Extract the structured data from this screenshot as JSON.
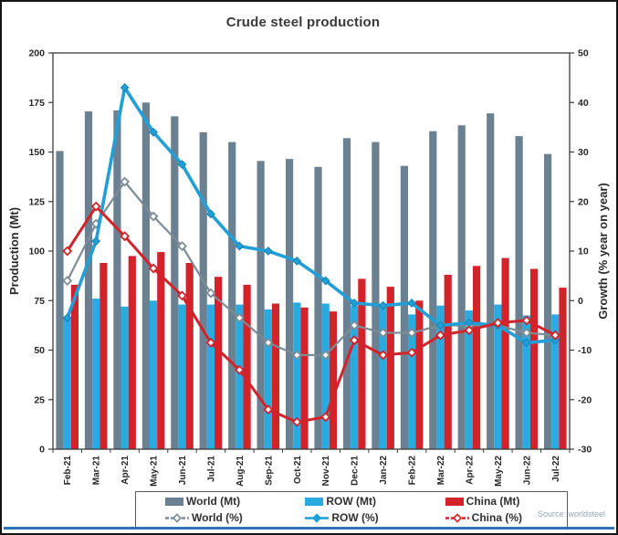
{
  "title": "Crude steel production",
  "source": "Source: worldsteel",
  "colors": {
    "world_bar": "#6b8191",
    "row_bar": "#29abe2",
    "china_bar": "#d2232a",
    "world_line": "#7c8c96",
    "row_line": "#219fd6",
    "china_line": "#d2232a",
    "axis": "#3c3c3c",
    "tick_text": "#262626",
    "footer_line": "#2e74b5",
    "source_text": "#92a7ba"
  },
  "chart_data": {
    "type": "bar",
    "subtype": "combo-bar-line-dual-axis",
    "title": "Crude steel production",
    "grid": false,
    "legend_position": "bottom",
    "categories": [
      "Feb-21",
      "Mar-21",
      "Apr-21",
      "May-21",
      "Jun-21",
      "Jul-21",
      "Aug-21",
      "Sep-21",
      "Oct-21",
      "Nov-21",
      "Dec-21",
      "Jan-22",
      "Feb-22",
      "Mar-22",
      "Apr-22",
      "May-22",
      "Jun-22",
      "Jul-22"
    ],
    "bar_series": [
      {
        "name": "World (Mt)",
        "axis": "left",
        "color": "#6b8191",
        "values": [
          150.5,
          170.5,
          171,
          175,
          168,
          160,
          155,
          145.5,
          146.5,
          142.5,
          157,
          155,
          143,
          160.5,
          163.5,
          169.5,
          158,
          149
        ]
      },
      {
        "name": "ROW (Mt)",
        "axis": "left",
        "color": "#29abe2",
        "values": [
          67,
          76,
          72,
          75,
          73,
          73,
          73,
          70.5,
          74,
          73.5,
          72.5,
          73,
          68,
          72.5,
          70,
          73,
          67.5,
          68
        ]
      },
      {
        "name": "China (Mt)",
        "axis": "left",
        "color": "#d2232a",
        "values": [
          83,
          94,
          97.5,
          99.5,
          94,
          87,
          83,
          73.5,
          71.5,
          69.5,
          86,
          82,
          75,
          88,
          92.5,
          96.5,
          91,
          81.5
        ]
      }
    ],
    "line_series": [
      {
        "name": "World (%)",
        "axis": "right",
        "color": "#7c8c96",
        "marker": "open-diamond",
        "width": 2.2,
        "values": [
          4,
          15.5,
          24,
          17,
          11,
          1.5,
          -3.5,
          -8.5,
          -11,
          -11,
          -5,
          -6.5,
          -6.5,
          -5,
          -5,
          -5,
          -6.5,
          -7
        ]
      },
      {
        "name": "ROW (%)",
        "axis": "right",
        "color": "#219fd6",
        "marker": "filled-diamond",
        "width": 3.6,
        "values": [
          -3.5,
          12,
          43,
          34,
          27.5,
          17.5,
          11,
          10,
          8,
          4,
          -0.5,
          -1,
          -0.5,
          -5,
          -4.5,
          -5,
          -8.5,
          -8
        ]
      },
      {
        "name": "China (%)",
        "axis": "right",
        "color": "#d2232a",
        "marker": "open-diamond",
        "width": 3,
        "values": [
          10,
          19,
          13,
          6.5,
          1,
          -8.5,
          -14,
          -22,
          -24.5,
          -23.5,
          -8,
          -11,
          -10.5,
          -7,
          -6,
          -4.5,
          -4,
          -7
        ]
      }
    ],
    "y_left": {
      "label": "Production (Mt)",
      "min": 0,
      "max": 200,
      "step": 25,
      "ticks": [
        0,
        25,
        50,
        75,
        100,
        125,
        150,
        175,
        200
      ]
    },
    "y_right": {
      "label": "Growth (% year on year)",
      "min": -30,
      "max": 50,
      "step": 10,
      "ticks": [
        -30,
        -20,
        -10,
        0,
        10,
        20,
        30,
        40,
        50
      ]
    }
  },
  "legend": {
    "row1": [
      "World (Mt)",
      "ROW (Mt)",
      "China (Mt)"
    ],
    "row2": [
      "World (%)",
      "ROW (%)",
      "China (%)"
    ]
  }
}
